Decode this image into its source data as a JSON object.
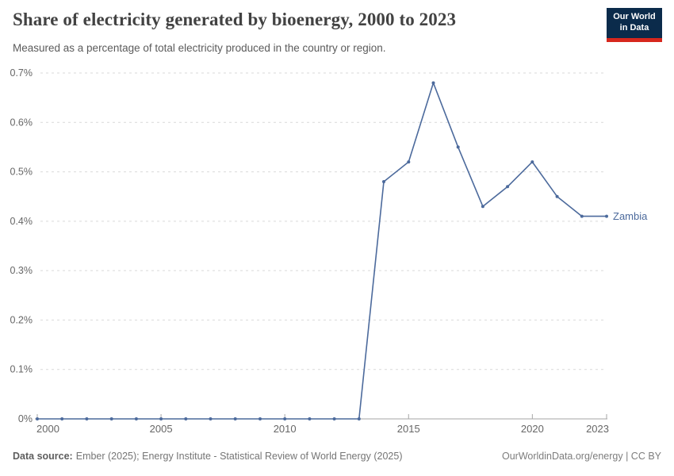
{
  "header": {
    "title": "Share of electricity generated by bioenergy, 2000 to 2023",
    "subtitle": "Measured as a percentage of total electricity produced in the country or region.",
    "logo": {
      "line1": "Our World",
      "line2": "in Data"
    }
  },
  "chart_data": {
    "type": "line",
    "title": "Share of electricity generated by bioenergy, 2000 to 2023",
    "unit": "%",
    "x": [
      2000,
      2001,
      2002,
      2003,
      2004,
      2005,
      2006,
      2007,
      2008,
      2009,
      2010,
      2011,
      2012,
      2013,
      2014,
      2015,
      2016,
      2017,
      2018,
      2019,
      2020,
      2021,
      2022,
      2023
    ],
    "series": [
      {
        "name": "Zambia",
        "values": [
          0,
          0,
          0,
          0,
          0,
          0,
          0,
          0,
          0,
          0,
          0,
          0,
          0,
          0,
          0.48,
          0.52,
          0.68,
          0.55,
          0.43,
          0.47,
          0.52,
          0.45,
          0.41,
          0.41
        ]
      }
    ],
    "xlabel": "",
    "ylabel": "",
    "ylim": [
      0,
      0.7
    ],
    "xlim": [
      2000,
      2023
    ],
    "yticks": [
      {
        "value": 0,
        "label": "0%"
      },
      {
        "value": 0.1,
        "label": "0.1%"
      },
      {
        "value": 0.2,
        "label": "0.2%"
      },
      {
        "value": 0.3,
        "label": "0.3%"
      },
      {
        "value": 0.4,
        "label": "0.4%"
      },
      {
        "value": 0.5,
        "label": "0.5%"
      },
      {
        "value": 0.6,
        "label": "0.6%"
      },
      {
        "value": 0.7,
        "label": "0.7%"
      }
    ],
    "xticks": [
      {
        "value": 2000,
        "label": "2000"
      },
      {
        "value": 2005,
        "label": "2005"
      },
      {
        "value": 2010,
        "label": "2010"
      },
      {
        "value": 2015,
        "label": "2015"
      },
      {
        "value": 2020,
        "label": "2020"
      },
      {
        "value": 2023,
        "label": "2023"
      }
    ],
    "grid": "horizontal-dashed",
    "legend_position": "line-end-label"
  },
  "footer": {
    "source_label": "Data source:",
    "source_text": "Ember (2025); Energy Institute - Statistical Review of World Energy (2025)",
    "attribution": "OurWorldinData.org/energy | CC BY"
  },
  "colors": {
    "series": "#4c6a9c",
    "grid": "#d9d9d9",
    "axis": "#a6a6a6",
    "tick_label": "#666666",
    "title": "#424242",
    "logo_bg": "#0b2b4b",
    "logo_accent": "#d7271d"
  }
}
